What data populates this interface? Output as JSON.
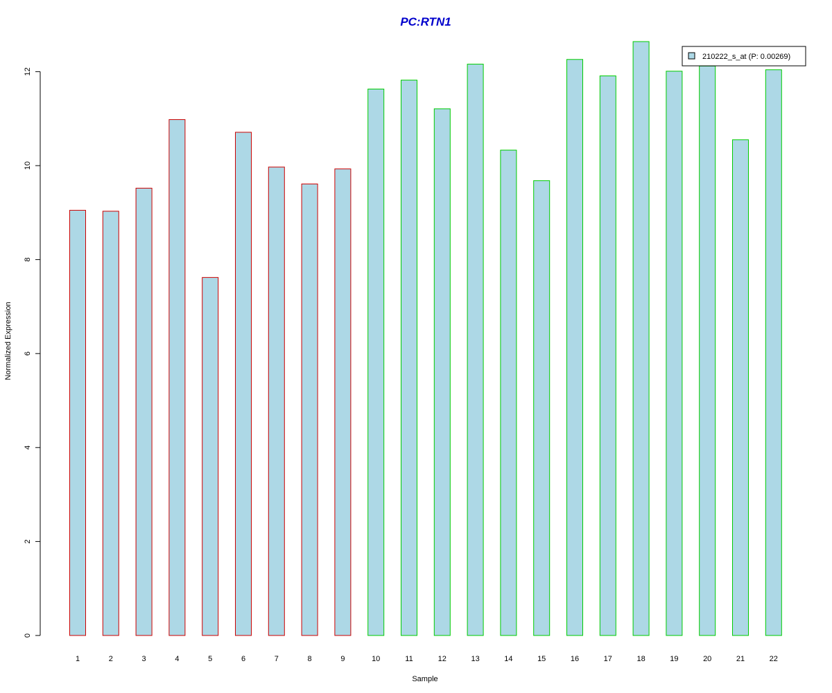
{
  "chart_data": {
    "type": "bar",
    "title": "PC:RTN1",
    "xlabel": "Sample",
    "ylabel": "Normalized Expression",
    "categories": [
      "1",
      "2",
      "3",
      "4",
      "5",
      "6",
      "7",
      "8",
      "9",
      "10",
      "11",
      "12",
      "13",
      "14",
      "15",
      "16",
      "17",
      "18",
      "19",
      "20",
      "21",
      "22"
    ],
    "values": [
      9.05,
      9.03,
      9.52,
      10.98,
      7.62,
      10.71,
      9.97,
      9.61,
      9.93,
      11.63,
      11.82,
      11.21,
      12.16,
      10.33,
      9.68,
      12.26,
      11.91,
      12.64,
      12.01,
      12.12,
      10.55,
      12.04
    ],
    "groups": [
      "red",
      "red",
      "red",
      "red",
      "red",
      "red",
      "red",
      "red",
      "red",
      "green",
      "green",
      "green",
      "green",
      "green",
      "green",
      "green",
      "green",
      "green",
      "green",
      "green",
      "green",
      "green"
    ],
    "series": [
      {
        "name": "210222_s_at (P: 0.00269)"
      }
    ],
    "ylim": [
      0,
      12
    ],
    "yticks": [
      0,
      2,
      4,
      6,
      8,
      10,
      12
    ],
    "grid": false,
    "legend_position": "top-right"
  },
  "colors": {
    "title": "#0000cc",
    "bar_fill": "#add8e6",
    "group_red": "#cc0000",
    "group_green": "#00cc00",
    "axis": "#000000",
    "legend_border": "#000000"
  }
}
